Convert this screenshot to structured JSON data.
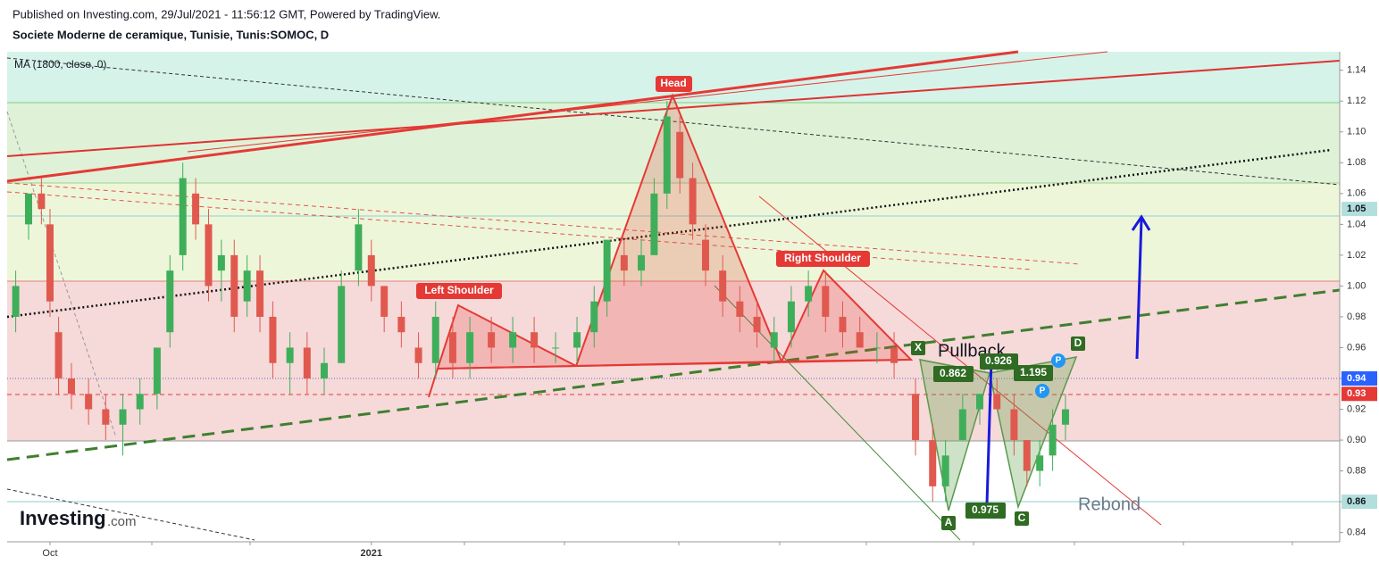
{
  "chart_data": {
    "type": "candlestick",
    "published": "Published on Investing.com, 29/Jul/2021 - 11:56:12 GMT, Powered by TradingView.",
    "title": "Societe Moderne de ceramique, Tunisie, Tunis:SOMOC, D",
    "indicator": "MA (1800, close, 0)",
    "logo": [
      "Investing",
      ".com"
    ],
    "annotations": {
      "head": "Head",
      "left_shoulder": "Left Shoulder",
      "right_shoulder": "Right Shoulder",
      "pullback": "Pullback",
      "rebond": "Rebond"
    },
    "pattern_points": [
      "X",
      "A",
      "C",
      "D"
    ],
    "ratios": [
      "0.862",
      "0.926",
      "1.195",
      "0.975"
    ],
    "markers": [
      "P",
      "P"
    ],
    "up_color": "#3fae5a",
    "down_color": "#e0594f",
    "xlim": [
      0,
      311
    ],
    "xticks": [
      {
        "value": 10,
        "label": "Oct"
      },
      {
        "value": 85,
        "label": "2021"
      }
    ],
    "ylim": [
      0.834,
      1.152
    ],
    "yticks": [
      0.84,
      0.86,
      0.88,
      {
        "value": 0.9,
        "label": "0.90"
      },
      0.92,
      0.94,
      0.96,
      0.98,
      {
        "value": 1,
        "label": "1.00"
      },
      1.02,
      1.04,
      1.06,
      1.08,
      {
        "value": 1.1,
        "label": "1.10"
      },
      1.12,
      1.14
    ],
    "grid": false,
    "price_tags": [
      {
        "value": 1.05,
        "color": "#b2dfdb",
        "text_color": "#131722"
      },
      {
        "value": 0.94,
        "color": "#2962ff",
        "text_color": "#ffffff"
      },
      {
        "value": 0.93,
        "color": "#e53935",
        "text_color": "#ffffff"
      },
      {
        "value": 0.86,
        "color": "#b2dfdb",
        "text_color": "#131722"
      }
    ],
    "x": [
      2,
      5,
      8,
      10,
      12,
      15,
      19,
      23,
      27,
      31,
      35,
      38,
      41,
      44,
      47,
      50,
      53,
      56,
      59,
      62,
      66,
      70,
      74,
      78,
      82,
      85,
      88,
      92,
      96,
      100,
      104,
      108,
      113,
      118,
      123,
      128,
      133,
      137,
      140,
      144,
      148,
      151,
      154,
      157,
      160,
      163,
      167,
      171,
      175,
      179,
      183,
      187,
      191,
      195,
      199,
      203,
      207,
      212,
      216,
      219,
      223,
      227,
      231,
      235,
      238,
      241,
      244,
      247
    ],
    "open": [
      0.98,
      1.04,
      1.06,
      1.04,
      0.97,
      0.94,
      0.93,
      0.92,
      0.91,
      0.92,
      0.93,
      0.97,
      1.02,
      1.06,
      1.04,
      1.01,
      1.02,
      0.99,
      1.01,
      0.98,
      0.95,
      0.96,
      0.94,
      0.95,
      1.01,
      1.02,
      1.0,
      0.98,
      0.96,
      0.95,
      0.97,
      0.95,
      0.97,
      0.96,
      0.97,
      0.96,
      0.96,
      0.97,
      0.99,
      1.02,
      1.01,
      1.02,
      1.06,
      1.1,
      1.07,
      1.03,
      1.01,
      0.99,
      0.98,
      0.96,
      0.97,
      0.99,
      1.0,
      0.98,
      0.97,
      0.96,
      0.96,
      0.93,
      0.9,
      0.87,
      0.9,
      0.92,
      0.93,
      0.92,
      0.9,
      0.88,
      0.89,
      0.91
    ],
    "high": [
      1.01,
      1.06,
      1.07,
      1.05,
      0.98,
      0.95,
      0.94,
      0.93,
      0.93,
      0.94,
      0.96,
      1.02,
      1.08,
      1.07,
      1.05,
      1.03,
      1.03,
      1.02,
      1.02,
      0.99,
      0.97,
      0.97,
      0.96,
      1.01,
      1.05,
      1.03,
      1.0,
      0.99,
      0.97,
      0.99,
      0.98,
      0.98,
      0.98,
      0.98,
      0.98,
      0.97,
      0.98,
      1.0,
      1.03,
      1.03,
      1.03,
      1.07,
      1.12,
      1.11,
      1.08,
      1.04,
      1.02,
      1.0,
      0.99,
      0.98,
      1.0,
      1.01,
      1.01,
      0.99,
      0.98,
      0.97,
      0.97,
      0.94,
      0.91,
      0.9,
      0.93,
      0.93,
      0.94,
      0.93,
      0.9,
      0.9,
      0.92,
      0.93
    ],
    "low": [
      0.97,
      1.03,
      1.04,
      0.98,
      0.93,
      0.92,
      0.91,
      0.9,
      0.89,
      0.91,
      0.92,
      0.96,
      1.01,
      1.03,
      0.99,
      0.99,
      0.97,
      0.98,
      0.97,
      0.94,
      0.93,
      0.93,
      0.93,
      0.95,
      1.0,
      0.99,
      0.97,
      0.96,
      0.94,
      0.94,
      0.94,
      0.94,
      0.95,
      0.95,
      0.95,
      0.95,
      0.95,
      0.96,
      0.98,
      1.0,
      1.0,
      1.02,
      1.05,
      1.06,
      1.03,
      1.0,
      0.98,
      0.97,
      0.96,
      0.95,
      0.96,
      0.98,
      0.97,
      0.96,
      0.96,
      0.95,
      0.94,
      0.89,
      0.86,
      0.86,
      0.9,
      0.91,
      0.92,
      0.89,
      0.87,
      0.87,
      0.88,
      0.9
    ],
    "close": [
      1.0,
      1.06,
      1.05,
      0.99,
      0.94,
      0.93,
      0.92,
      0.91,
      0.92,
      0.93,
      0.96,
      1.01,
      1.07,
      1.04,
      1.0,
      1.02,
      0.98,
      1.01,
      0.98,
      0.95,
      0.96,
      0.94,
      0.95,
      1.0,
      1.04,
      1.0,
      0.98,
      0.97,
      0.95,
      0.98,
      0.95,
      0.97,
      0.96,
      0.97,
      0.96,
      0.96,
      0.97,
      0.99,
      1.03,
      1.01,
      1.02,
      1.06,
      1.11,
      1.07,
      1.04,
      1.01,
      0.99,
      0.98,
      0.97,
      0.97,
      0.99,
      1.0,
      0.98,
      0.97,
      0.96,
      0.96,
      0.95,
      0.9,
      0.87,
      0.89,
      0.92,
      0.93,
      0.92,
      0.9,
      0.88,
      0.89,
      0.91,
      0.92
    ]
  }
}
